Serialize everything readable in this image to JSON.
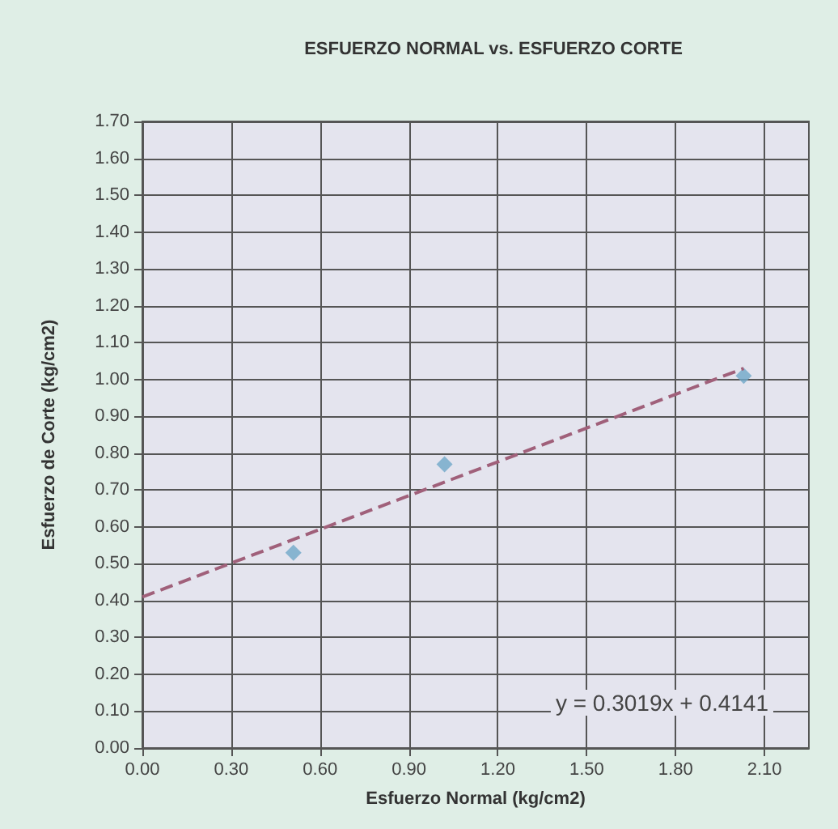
{
  "chart_data": {
    "type": "scatter",
    "title": "ESFUERZO NORMAL vs. ESFUERZO CORTE",
    "xlabel": "Esfuerzo Normal (kg/cm2)",
    "ylabel": "Esfuerzo de Corte (kg/cm2)",
    "series": [
      {
        "color": "#6fa8c8",
        "marker": "diamond",
        "x": [
          0.51,
          1.02,
          2.03
        ],
        "values": [
          0.53,
          0.77,
          1.01
        ]
      },
      {
        "type": "line",
        "color": "#a0607a",
        "line_style": "dashed",
        "marker": "none",
        "x": [
          0,
          2.03
        ],
        "values": [
          0.41,
          1.03
        ]
      }
    ],
    "annotations": [
      "y = 0.3019x + 0.4141"
    ],
    "xlim": [
      0,
      2.25
    ],
    "xticks": [
      {
        "value": 0,
        "label": "0.00"
      },
      {
        "value": 0.3,
        "label": "0.30"
      },
      {
        "value": 0.6,
        "label": "0.60"
      },
      {
        "value": 0.9,
        "label": "0.90"
      },
      {
        "value": 1.2,
        "label": "1.20"
      },
      {
        "value": 1.5,
        "label": "1.50"
      },
      {
        "value": 1.8,
        "label": "1.80"
      },
      {
        "value": 2.1,
        "label": "2.10"
      }
    ],
    "ylim": [
      0,
      1.7
    ],
    "yticks": [
      {
        "value": 0,
        "label": "0.00"
      },
      {
        "value": 0.1,
        "label": "0.10"
      },
      {
        "value": 0.2,
        "label": "0.20"
      },
      {
        "value": 0.3,
        "label": "0.30"
      },
      {
        "value": 0.4,
        "label": "0.40"
      },
      {
        "value": 0.5,
        "label": "0.50"
      },
      {
        "value": 0.6,
        "label": "0.60"
      },
      {
        "value": 0.7,
        "label": "0.70"
      },
      {
        "value": 0.8,
        "label": "0.80"
      },
      {
        "value": 0.9,
        "label": "0.90"
      },
      {
        "value": 1.0,
        "label": "1.00"
      },
      {
        "value": 1.1,
        "label": "1.10"
      },
      {
        "value": 1.2,
        "label": "1.20"
      },
      {
        "value": 1.3,
        "label": "1.30"
      },
      {
        "value": 1.4,
        "label": "1.40"
      },
      {
        "value": 1.5,
        "label": "1.50"
      },
      {
        "value": 1.6,
        "label": "1.60"
      },
      {
        "value": 1.7,
        "label": "1.70"
      }
    ],
    "grid": true
  }
}
